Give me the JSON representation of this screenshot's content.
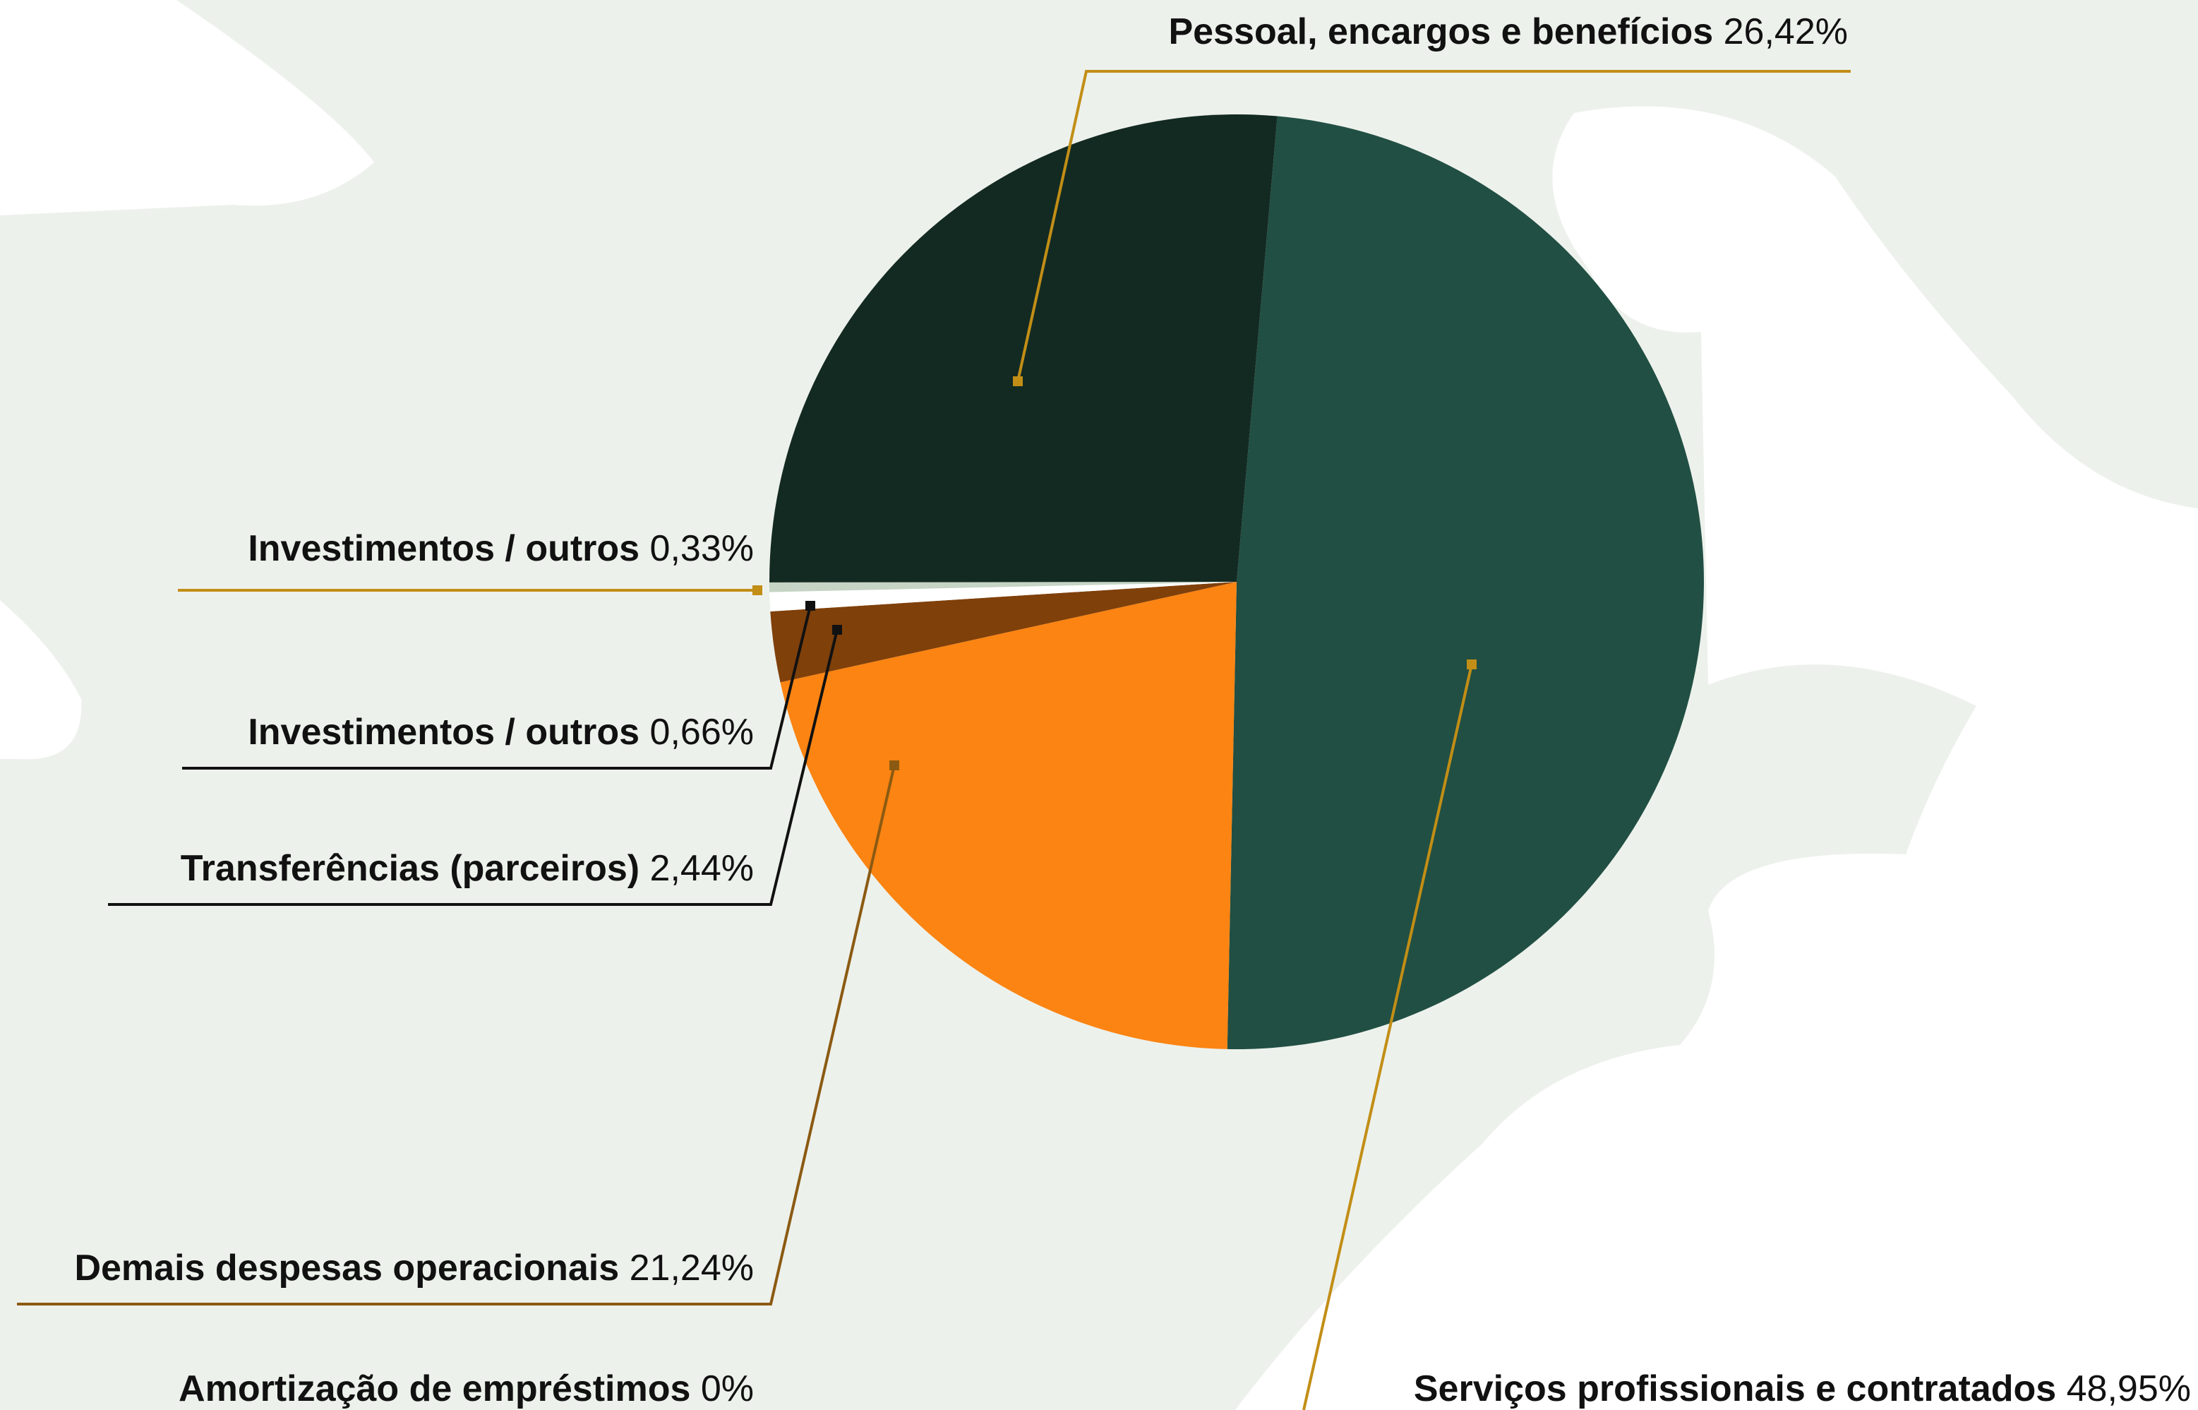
{
  "chart_data": {
    "type": "pie",
    "categories": [
      "Serviços profissionais e contratados",
      "Demais despesas operacionais",
      "Transferências (parceiros)",
      "Investimentos / outros",
      "Investimentos / outros",
      "Pessoal, encargos e benefícios",
      "Amortização de empréstimos"
    ],
    "values": [
      48.95,
      21.24,
      2.44,
      0.66,
      0.33,
      26.42,
      0
    ],
    "value_labels": [
      "48,95%",
      "21,24%",
      "2,44%",
      "0,66%",
      "0,33%",
      "26,42%",
      "0%"
    ],
    "colors": [
      "#214f43",
      "#fb8412",
      "#80400a",
      "#ffffff",
      "#c5d4c4",
      "#132a22",
      "#999999"
    ]
  }
}
